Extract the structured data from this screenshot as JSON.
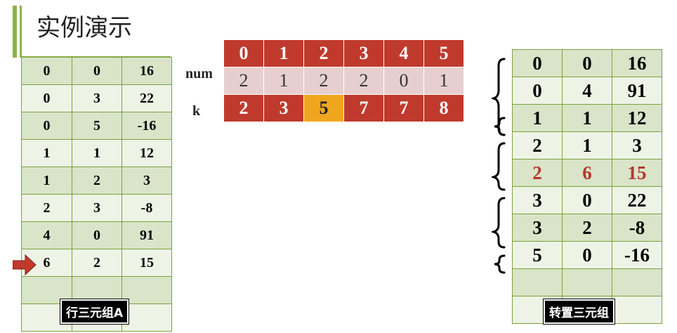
{
  "title": "实例演示",
  "triple_a": {
    "label": "行三元组A",
    "rows": [
      [
        "0",
        "0",
        "16"
      ],
      [
        "0",
        "3",
        "22"
      ],
      [
        "0",
        "5",
        "-16"
      ],
      [
        "1",
        "1",
        "12"
      ],
      [
        "1",
        "2",
        "3"
      ],
      [
        "2",
        "3",
        "-8"
      ],
      [
        "4",
        "0",
        "91"
      ],
      [
        "6",
        "2",
        "15"
      ],
      [
        "",
        "",
        ""
      ],
      [
        "",
        "",
        ""
      ]
    ]
  },
  "array": {
    "index": [
      "0",
      "1",
      "2",
      "3",
      "4",
      "5"
    ],
    "num_label": "num",
    "num": [
      "2",
      "1",
      "2",
      "2",
      "0",
      "1"
    ],
    "k_label": "k",
    "k": [
      "2",
      "3",
      "5",
      "7",
      "7",
      "8"
    ],
    "highlight_k_index": 2
  },
  "triple_b": {
    "label": "转置三元组",
    "rows": [
      [
        "0",
        "0",
        "16"
      ],
      [
        "0",
        "4",
        "91"
      ],
      [
        "1",
        "1",
        "12"
      ],
      [
        "2",
        "1",
        "3"
      ],
      [
        "2",
        "6",
        "15"
      ],
      [
        "3",
        "0",
        "22"
      ],
      [
        "3",
        "2",
        "-8"
      ],
      [
        "5",
        "0",
        "-16"
      ],
      [
        "",
        "",
        ""
      ],
      [
        "",
        "",
        ""
      ]
    ],
    "highlight_row": 4
  },
  "colors": {
    "green": "#8db34a",
    "red": "#bf3a2c",
    "orange": "#f0a51f",
    "pink": "#e8cfcf"
  }
}
